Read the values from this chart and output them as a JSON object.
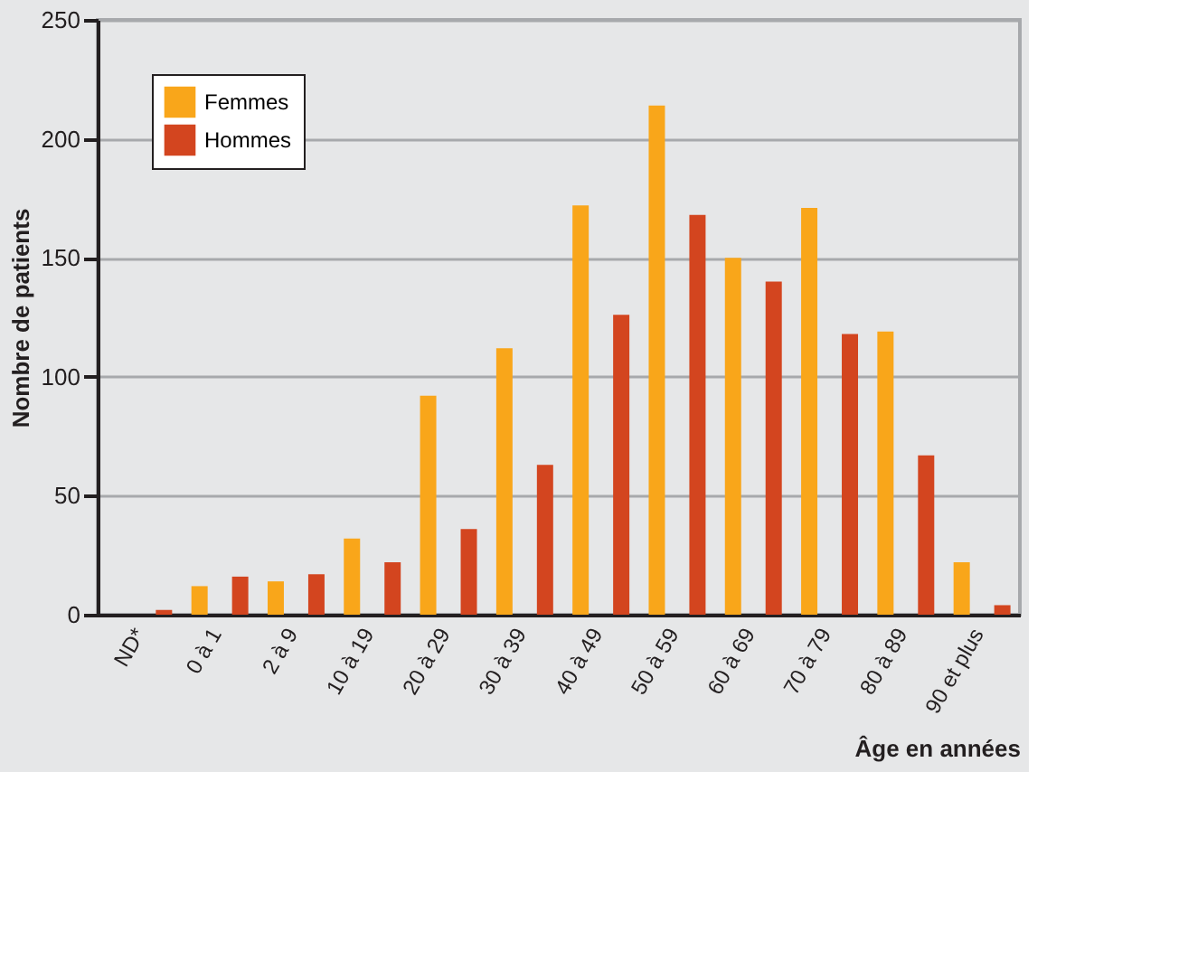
{
  "chart_data": {
    "type": "bar",
    "xlabel": "Âge en années",
    "ylabel": "Nombre de patients",
    "categories": [
      "ND*",
      "0 à 1",
      "2 à 9",
      "10 à 19",
      "20 à 29",
      "30 à 39",
      "40 à 49",
      "50 à 59",
      "60 à 69",
      "70 à 79",
      "80 à 89",
      "90 et plus"
    ],
    "series": [
      {
        "name": "Femmes",
        "color": "#f9a61a",
        "values": [
          0,
          12,
          14,
          32,
          92,
          112,
          172,
          214,
          150,
          171,
          119,
          22
        ]
      },
      {
        "name": "Hommes",
        "color": "#d3451f",
        "values": [
          2,
          16,
          17,
          22,
          36,
          63,
          126,
          168,
          140,
          118,
          67,
          4
        ]
      }
    ],
    "ylim": [
      0,
      250
    ],
    "yticks": [
      0,
      50,
      100,
      150,
      200,
      250
    ],
    "grid": "y",
    "legend": "top left"
  }
}
